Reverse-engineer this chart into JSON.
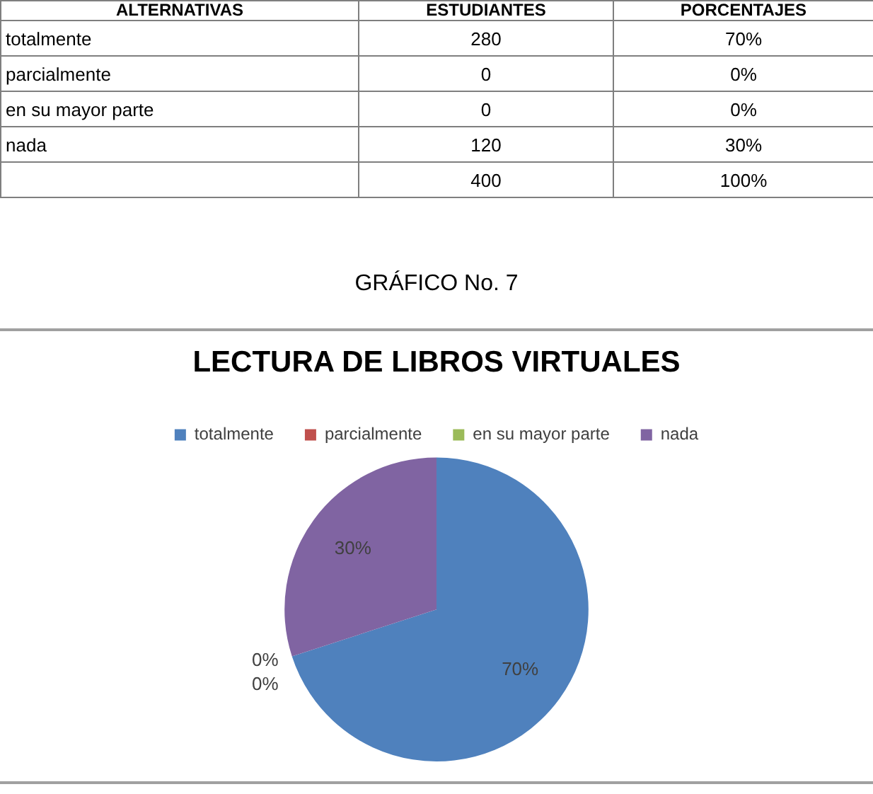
{
  "chart_data": [
    {
      "type": "other",
      "ylabel": "ALTERNATIVAS",
      "categories": [
        "ESTUDIANTES",
        "PORCENTAJES"
      ],
      "y_categories": [
        "totalmente",
        "parcialmente",
        "en su mayor parte",
        "nada",
        null
      ],
      "cell_labels": [
        [
          "280",
          "70%"
        ],
        [
          "0",
          "0%"
        ],
        [
          "0",
          "0%"
        ],
        [
          "120",
          "30%"
        ],
        [
          "400",
          "100%"
        ]
      ]
    },
    {
      "type": "pie",
      "title": "LECTURA DE LIBROS VIRTUALES",
      "annotations": [
        "GRÁFICO No. 7"
      ],
      "categories": [
        "totalmente",
        "parcialmente",
        "en su mayor parte",
        "nada"
      ],
      "values": [
        70,
        0,
        0,
        30
      ],
      "colors": [
        "#4f81bd",
        "#c0504d",
        "#9bbb59",
        "#8064a2"
      ],
      "value_labels": [
        "70%",
        "0%",
        "0%",
        "30%"
      ],
      "legend": "top"
    }
  ]
}
